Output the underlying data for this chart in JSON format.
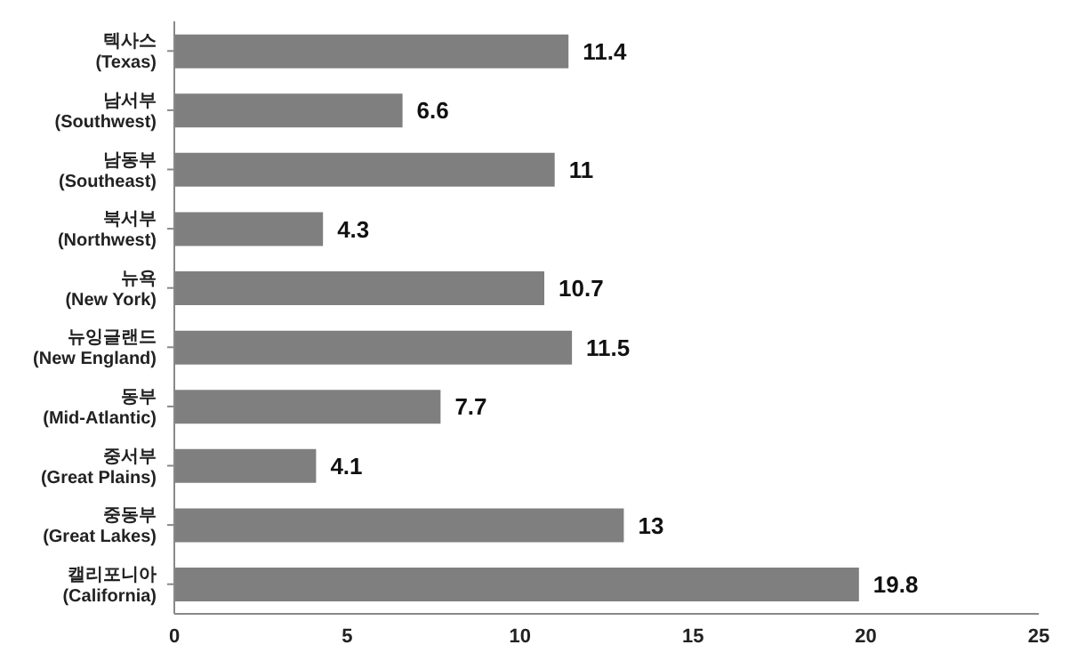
{
  "chart_data": {
    "type": "bar",
    "orientation": "horizontal",
    "categories": [
      "텍사스\n(Texas)",
      "남서부\n(Southwest)",
      "남동부\n(Southeast)",
      "북서부\n(Northwest)",
      "뉴욕\n(New York)",
      "뉴잉글랜드\n(New England)",
      "동부\n(Mid-Atlantic)",
      "중서부\n(Great Plains)",
      "중동부\n(Great Lakes)",
      "캘리포니아\n(California)"
    ],
    "values": [
      11.4,
      6.6,
      11,
      4.3,
      10.7,
      11.5,
      7.7,
      4.1,
      13,
      19.8
    ],
    "color": "#7f7f7f",
    "xlim": [
      0,
      25
    ],
    "xticks": [
      0,
      5,
      10,
      15,
      20,
      25
    ],
    "data_labels": true,
    "grid": false,
    "legend": false
  }
}
